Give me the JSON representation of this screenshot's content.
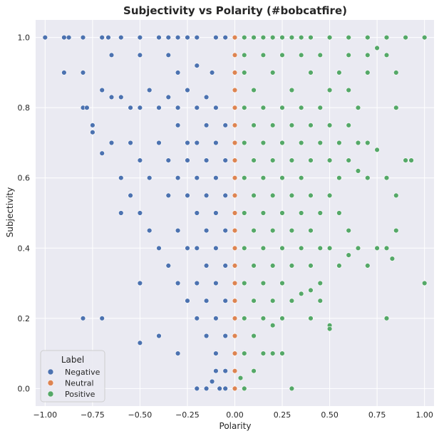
{
  "chart_data": {
    "type": "scatter",
    "title": "Subjectivity vs Polarity (#bobcatfire)",
    "xlabel": "Polarity",
    "ylabel": "Subjectivity",
    "xlim": [
      -1.05,
      1.05
    ],
    "ylim": [
      -0.05,
      1.05
    ],
    "xticks": [
      -1.0,
      -0.75,
      -0.5,
      -0.25,
      0.0,
      0.25,
      0.5,
      0.75,
      1.0
    ],
    "xtick_labels": [
      "−1.00",
      "−0.75",
      "−0.50",
      "−0.25",
      "0.00",
      "0.25",
      "0.50",
      "0.75",
      "1.00"
    ],
    "yticks": [
      0.0,
      0.2,
      0.4,
      0.6,
      0.8,
      1.0
    ],
    "ytick_labels": [
      "0.0",
      "0.2",
      "0.4",
      "0.6",
      "0.8",
      "1.0"
    ],
    "grid": true,
    "background_color": "#eaeaf2",
    "legend": {
      "title": "Label",
      "placement": "lower-left",
      "entries": [
        {
          "name": "Negative",
          "color": "#4c72b0"
        },
        {
          "name": "Neutral",
          "color": "#dd8452"
        },
        {
          "name": "Positive",
          "color": "#55a868"
        }
      ]
    },
    "series": [
      {
        "name": "Negative",
        "color": "#4c72b0",
        "points": [
          [
            -1.0,
            1.0
          ],
          [
            -0.9,
            1.0
          ],
          [
            -0.875,
            1.0
          ],
          [
            -0.8,
            1.0
          ],
          [
            -0.7,
            1.0
          ],
          [
            -0.667,
            1.0
          ],
          [
            -0.6,
            1.0
          ],
          [
            -0.5,
            1.0
          ],
          [
            -0.4,
            1.0
          ],
          [
            -0.35,
            1.0
          ],
          [
            -0.3,
            1.0
          ],
          [
            -0.25,
            1.0
          ],
          [
            -0.2,
            1.0
          ],
          [
            -0.1,
            1.0
          ],
          [
            -0.05,
            1.0
          ],
          [
            -0.9,
            0.9
          ],
          [
            -0.8,
            0.9
          ],
          [
            -0.65,
            0.95
          ],
          [
            -0.5,
            0.95
          ],
          [
            -0.35,
            0.95
          ],
          [
            -0.3,
            0.9
          ],
          [
            -0.2,
            0.92
          ],
          [
            -0.12,
            0.9
          ],
          [
            -0.8,
            0.8
          ],
          [
            -0.78,
            0.8
          ],
          [
            -0.7,
            0.85
          ],
          [
            -0.65,
            0.83
          ],
          [
            -0.6,
            0.83
          ],
          [
            -0.55,
            0.8
          ],
          [
            -0.5,
            0.8
          ],
          [
            -0.45,
            0.85
          ],
          [
            -0.4,
            0.8
          ],
          [
            -0.35,
            0.83
          ],
          [
            -0.3,
            0.8
          ],
          [
            -0.25,
            0.85
          ],
          [
            -0.2,
            0.8
          ],
          [
            -0.15,
            0.83
          ],
          [
            -0.1,
            0.8
          ],
          [
            -0.75,
            0.75
          ],
          [
            -0.75,
            0.73
          ],
          [
            -0.7,
            0.67
          ],
          [
            -0.65,
            0.7
          ],
          [
            -0.6,
            0.6
          ],
          [
            -0.6,
            0.5
          ],
          [
            -0.55,
            0.7
          ],
          [
            -0.5,
            0.65
          ],
          [
            -0.55,
            0.55
          ],
          [
            -0.5,
            0.5
          ],
          [
            -0.45,
            0.6
          ],
          [
            -0.45,
            0.45
          ],
          [
            -0.4,
            0.4
          ],
          [
            -0.4,
            0.7
          ],
          [
            -0.35,
            0.65
          ],
          [
            -0.35,
            0.55
          ],
          [
            -0.35,
            0.35
          ],
          [
            -0.3,
            0.6
          ],
          [
            -0.3,
            0.45
          ],
          [
            -0.3,
            0.3
          ],
          [
            -0.3,
            0.75
          ],
          [
            -0.25,
            0.7
          ],
          [
            -0.25,
            0.55
          ],
          [
            -0.25,
            0.4
          ],
          [
            -0.25,
            0.25
          ],
          [
            -0.25,
            0.65
          ],
          [
            -0.2,
            0.6
          ],
          [
            -0.2,
            0.5
          ],
          [
            -0.2,
            0.4
          ],
          [
            -0.2,
            0.3
          ],
          [
            -0.2,
            0.2
          ],
          [
            -0.2,
            0.7
          ],
          [
            -0.15,
            0.75
          ],
          [
            -0.15,
            0.65
          ],
          [
            -0.15,
            0.55
          ],
          [
            -0.15,
            0.45
          ],
          [
            -0.15,
            0.35
          ],
          [
            -0.15,
            0.25
          ],
          [
            -0.15,
            0.15
          ],
          [
            -0.1,
            0.7
          ],
          [
            -0.1,
            0.6
          ],
          [
            -0.1,
            0.5
          ],
          [
            -0.1,
            0.4
          ],
          [
            -0.1,
            0.3
          ],
          [
            -0.1,
            0.2
          ],
          [
            -0.1,
            0.1
          ],
          [
            -0.1,
            0.05
          ],
          [
            -0.05,
            0.75
          ],
          [
            -0.05,
            0.65
          ],
          [
            -0.05,
            0.55
          ],
          [
            -0.05,
            0.45
          ],
          [
            -0.05,
            0.35
          ],
          [
            -0.05,
            0.25
          ],
          [
            -0.05,
            0.15
          ],
          [
            -0.05,
            0.05
          ],
          [
            -0.05,
            0.0
          ],
          [
            -0.8,
            0.2
          ],
          [
            -0.7,
            0.2
          ],
          [
            -0.5,
            0.3
          ],
          [
            -0.5,
            0.13
          ],
          [
            -0.4,
            0.15
          ],
          [
            -0.2,
            0.0
          ],
          [
            -0.15,
            0.0
          ],
          [
            -0.3,
            0.1
          ],
          [
            -0.12,
            0.02
          ],
          [
            -0.08,
            0.0
          ]
        ]
      },
      {
        "name": "Neutral",
        "color": "#dd8452",
        "points": [
          [
            0.0,
            1.0
          ],
          [
            0.0,
            0.95
          ],
          [
            0.0,
            0.9
          ],
          [
            0.0,
            0.85
          ],
          [
            0.0,
            0.8
          ],
          [
            0.0,
            0.75
          ],
          [
            0.0,
            0.7
          ],
          [
            0.0,
            0.65
          ],
          [
            0.0,
            0.6
          ],
          [
            0.0,
            0.55
          ],
          [
            0.0,
            0.5
          ],
          [
            0.0,
            0.45
          ],
          [
            0.0,
            0.4
          ],
          [
            0.0,
            0.35
          ],
          [
            0.0,
            0.3
          ],
          [
            0.0,
            0.25
          ],
          [
            0.0,
            0.2
          ],
          [
            0.0,
            0.15
          ],
          [
            0.0,
            0.1
          ],
          [
            0.0,
            0.05
          ],
          [
            0.0,
            0.0
          ]
        ]
      },
      {
        "name": "Positive",
        "color": "#55a868",
        "points": [
          [
            0.05,
            1.0
          ],
          [
            0.1,
            1.0
          ],
          [
            0.15,
            1.0
          ],
          [
            0.2,
            1.0
          ],
          [
            0.25,
            1.0
          ],
          [
            0.3,
            1.0
          ],
          [
            0.35,
            1.0
          ],
          [
            0.4,
            1.0
          ],
          [
            0.5,
            1.0
          ],
          [
            0.6,
            1.0
          ],
          [
            0.7,
            1.0
          ],
          [
            0.8,
            1.0
          ],
          [
            0.9,
            1.0
          ],
          [
            1.0,
            1.0
          ],
          [
            0.05,
            0.95
          ],
          [
            0.15,
            0.95
          ],
          [
            0.25,
            0.95
          ],
          [
            0.35,
            0.95
          ],
          [
            0.45,
            0.95
          ],
          [
            0.6,
            0.95
          ],
          [
            0.7,
            0.95
          ],
          [
            0.8,
            0.95
          ],
          [
            0.85,
            0.9
          ],
          [
            0.75,
            0.97
          ],
          [
            0.05,
            0.9
          ],
          [
            0.1,
            0.85
          ],
          [
            0.2,
            0.9
          ],
          [
            0.3,
            0.85
          ],
          [
            0.4,
            0.9
          ],
          [
            0.5,
            0.85
          ],
          [
            0.55,
            0.9
          ],
          [
            0.6,
            0.85
          ],
          [
            0.7,
            0.9
          ],
          [
            0.65,
            0.8
          ],
          [
            0.85,
            0.8
          ],
          [
            0.05,
            0.8
          ],
          [
            0.1,
            0.75
          ],
          [
            0.15,
            0.8
          ],
          [
            0.2,
            0.75
          ],
          [
            0.25,
            0.8
          ],
          [
            0.3,
            0.75
          ],
          [
            0.35,
            0.8
          ],
          [
            0.4,
            0.75
          ],
          [
            0.45,
            0.8
          ],
          [
            0.5,
            0.75
          ],
          [
            0.55,
            0.7
          ],
          [
            0.6,
            0.75
          ],
          [
            0.65,
            0.7
          ],
          [
            0.7,
            0.7
          ],
          [
            0.75,
            0.68
          ],
          [
            0.05,
            0.7
          ],
          [
            0.1,
            0.65
          ],
          [
            0.15,
            0.7
          ],
          [
            0.2,
            0.65
          ],
          [
            0.25,
            0.7
          ],
          [
            0.3,
            0.65
          ],
          [
            0.35,
            0.7
          ],
          [
            0.4,
            0.65
          ],
          [
            0.45,
            0.7
          ],
          [
            0.5,
            0.65
          ],
          [
            0.55,
            0.6
          ],
          [
            0.6,
            0.65
          ],
          [
            0.65,
            0.62
          ],
          [
            0.7,
            0.6
          ],
          [
            0.8,
            0.6
          ],
          [
            0.85,
            0.55
          ],
          [
            0.9,
            0.65
          ],
          [
            0.93,
            0.65
          ],
          [
            0.05,
            0.6
          ],
          [
            0.1,
            0.55
          ],
          [
            0.15,
            0.6
          ],
          [
            0.2,
            0.55
          ],
          [
            0.25,
            0.6
          ],
          [
            0.3,
            0.55
          ],
          [
            0.35,
            0.6
          ],
          [
            0.4,
            0.55
          ],
          [
            0.45,
            0.5
          ],
          [
            0.5,
            0.55
          ],
          [
            0.55,
            0.5
          ],
          [
            0.6,
            0.45
          ],
          [
            0.65,
            0.4
          ],
          [
            0.7,
            0.35
          ],
          [
            0.75,
            0.4
          ],
          [
            0.8,
            0.4
          ],
          [
            0.85,
            0.45
          ],
          [
            0.05,
            0.5
          ],
          [
            0.1,
            0.45
          ],
          [
            0.15,
            0.5
          ],
          [
            0.2,
            0.45
          ],
          [
            0.25,
            0.5
          ],
          [
            0.3,
            0.45
          ],
          [
            0.35,
            0.5
          ],
          [
            0.4,
            0.45
          ],
          [
            0.45,
            0.4
          ],
          [
            0.5,
            0.4
          ],
          [
            0.55,
            0.35
          ],
          [
            0.6,
            0.38
          ],
          [
            0.83,
            0.37
          ],
          [
            0.05,
            0.4
          ],
          [
            0.1,
            0.35
          ],
          [
            0.15,
            0.4
          ],
          [
            0.2,
            0.35
          ],
          [
            0.25,
            0.4
          ],
          [
            0.3,
            0.35
          ],
          [
            0.35,
            0.4
          ],
          [
            0.4,
            0.35
          ],
          [
            0.45,
            0.3
          ],
          [
            0.05,
            0.3
          ],
          [
            0.1,
            0.25
          ],
          [
            0.15,
            0.3
          ],
          [
            0.2,
            0.25
          ],
          [
            0.25,
            0.3
          ],
          [
            0.3,
            0.25
          ],
          [
            0.35,
            0.27
          ],
          [
            0.4,
            0.28
          ],
          [
            0.45,
            0.25
          ],
          [
            0.4,
            0.2
          ],
          [
            0.05,
            0.2
          ],
          [
            0.1,
            0.15
          ],
          [
            0.15,
            0.2
          ],
          [
            0.2,
            0.18
          ],
          [
            0.25,
            0.2
          ],
          [
            0.5,
            0.18
          ],
          [
            0.5,
            0.17
          ],
          [
            0.8,
            0.2
          ],
          [
            1.0,
            0.3
          ],
          [
            0.05,
            0.1
          ],
          [
            0.1,
            0.05
          ],
          [
            0.15,
            0.1
          ],
          [
            0.2,
            0.1
          ],
          [
            0.25,
            0.1
          ],
          [
            0.03,
            0.03
          ],
          [
            0.05,
            0.0
          ],
          [
            0.3,
            0.0
          ]
        ]
      }
    ]
  }
}
